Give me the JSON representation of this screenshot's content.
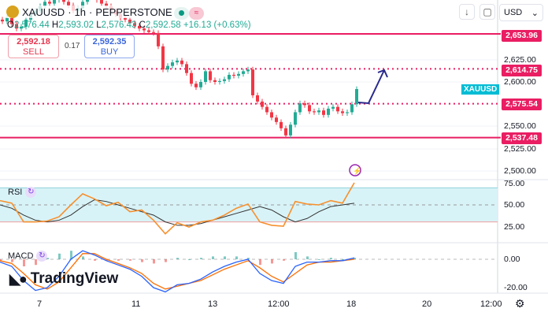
{
  "header": {
    "symbol": "XAUUSD",
    "interval": "1h",
    "exchange": "PEPPERSTONE",
    "separator": "·",
    "open_label": "O",
    "open": "2,576.44",
    "high_label": "H",
    "high": "2,593.02",
    "low_label": "L",
    "low": "2,576.43",
    "close_label": "C",
    "close": "2,592.58",
    "change": "+16.13 (+0.63%)"
  },
  "trade": {
    "sell_price": "2,592.18",
    "sell_label": "SELL",
    "spread": "0.17",
    "buy_price": "2,592.35",
    "buy_label": "BUY"
  },
  "toolbar": {
    "currency": "USD",
    "currency_chevron": "⌄",
    "download_icon": "↓",
    "fullscreen_icon": "▢"
  },
  "price_axis": {
    "ticks": [
      "2,625.00",
      "2,600.00",
      "2,550.00",
      "2,525.00",
      "2,500.00"
    ],
    "levels": [
      "2,653.96",
      "2,614.75",
      "2,575.54",
      "2,537.48"
    ],
    "symbol_tag": "XAUUSD"
  },
  "rsi": {
    "label": "RSI",
    "ticks": [
      "75.00",
      "50.00",
      "25.00"
    ],
    "values": [
      55,
      52,
      30,
      30,
      31,
      36,
      50,
      63,
      57,
      49,
      53,
      42,
      44,
      32,
      16,
      29,
      24,
      30,
      32,
      38,
      46,
      51,
      30,
      26,
      25,
      54,
      51,
      50,
      55,
      52,
      76
    ],
    "ma": [
      50,
      46,
      38,
      32,
      30,
      32,
      38,
      48,
      56,
      54,
      50,
      46,
      42,
      38,
      30,
      26,
      26,
      28,
      32,
      36,
      40,
      44,
      48,
      44,
      36,
      30,
      34,
      42,
      48,
      50,
      52
    ]
  },
  "macd": {
    "label": "MACD",
    "ticks": [
      "0.00",
      "-20.00"
    ],
    "macd": [
      -2,
      -5,
      -15,
      -22,
      -20,
      -12,
      0,
      6,
      3,
      -1,
      -4,
      -7,
      -12,
      -20,
      -23,
      -18,
      -17,
      -14,
      -9,
      -5,
      -2,
      0,
      -10,
      -15,
      -17,
      -5,
      -2,
      -2,
      -1,
      -1,
      1
    ],
    "signal": [
      -1,
      -3,
      -10,
      -18,
      -21,
      -16,
      -6,
      4,
      4,
      0,
      -3,
      -6,
      -10,
      -17,
      -21,
      -19,
      -17,
      -15,
      -11,
      -7,
      -4,
      -1,
      -6,
      -12,
      -16,
      -10,
      -4,
      -2,
      -2,
      -1,
      0
    ]
  },
  "candles": {
    "closes": [
      2668,
      2672,
      2665,
      2660,
      2662,
      2670,
      2676,
      2680,
      2685,
      2690,
      2688,
      2692,
      2695,
      2690,
      2686,
      2680,
      2683,
      2690,
      2695,
      2698,
      2692,
      2688,
      2685,
      2680,
      2676,
      2672,
      2670,
      2666,
      2663,
      2660,
      2658,
      2656,
      2655,
      2640,
      2614,
      2618,
      2622,
      2624,
      2620,
      2610,
      2598,
      2594,
      2600,
      2612,
      2602,
      2600,
      2601,
      2603,
      2608,
      2607,
      2609,
      2612,
      2614,
      2585,
      2578,
      2572,
      2566,
      2560,
      2555,
      2548,
      2540,
      2552,
      2566,
      2576,
      2574,
      2567,
      2566,
      2568,
      2563,
      2570,
      2572,
      2567,
      2565,
      2566,
      2575,
      2592
    ]
  },
  "time_axis": [
    "7",
    "11",
    "13",
    "12:00",
    "18",
    "20",
    "12:00"
  ],
  "branding": "TradingView",
  "colors": {
    "up": "#22ab94",
    "down": "#f23645",
    "level": "#e91e63",
    "rsi": "#f7902e",
    "macd": "#2962ff",
    "signal": "#ff6d00",
    "arrow": "#2a2a8c",
    "rsi_band": "#d8f3f7"
  }
}
